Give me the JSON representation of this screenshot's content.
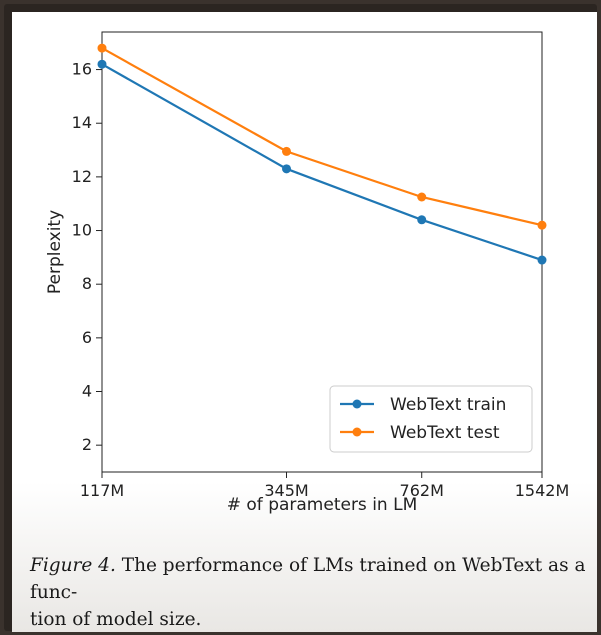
{
  "chart_data": {
    "type": "line",
    "categories": [
      "117M",
      "345M",
      "762M",
      "1542M"
    ],
    "series": [
      {
        "name": "WebText train",
        "values": [
          16.2,
          12.3,
          10.4,
          8.9
        ],
        "color": "#1f77b4"
      },
      {
        "name": "WebText test",
        "values": [
          16.8,
          12.95,
          11.25,
          10.2
        ],
        "color": "#ff7f0e"
      }
    ],
    "xlabel": "# of parameters in LM",
    "ylabel": "Perplexity",
    "ylim": [
      1,
      17.4
    ],
    "yticks": [
      2,
      4,
      6,
      8,
      10,
      12,
      14,
      16
    ],
    "grid": false,
    "legend_position": "lower-right"
  },
  "caption": {
    "figure_label": "Figure 4.",
    "text": " The performance of LMs trained on WebText as a func-\ntion of model size."
  }
}
